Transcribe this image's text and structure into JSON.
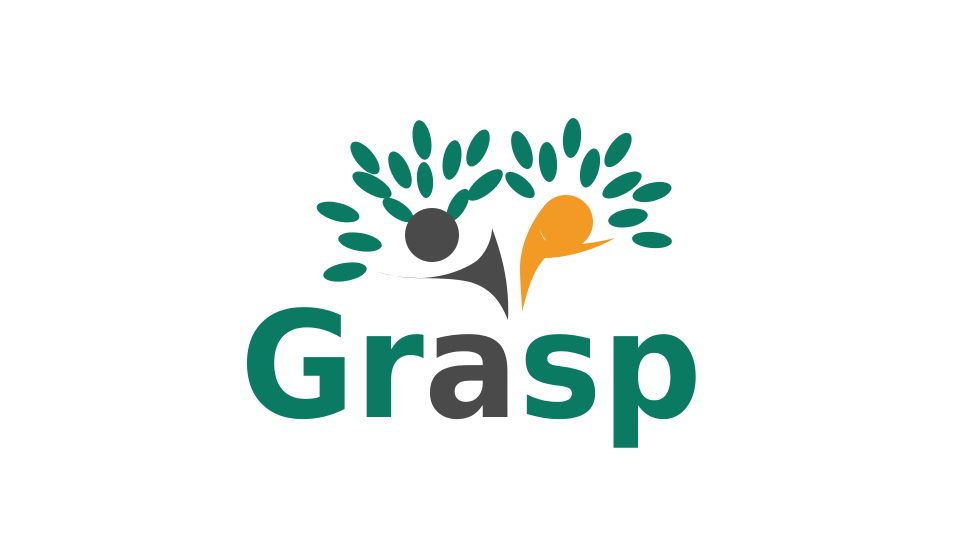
{
  "logo": {
    "wordmark_parts": [
      "Gr",
      "a",
      "sp"
    ]
  }
}
